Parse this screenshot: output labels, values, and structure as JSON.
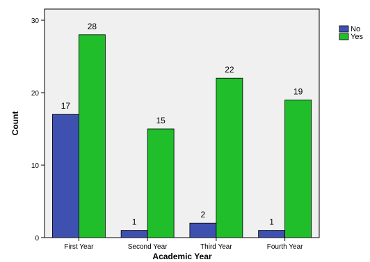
{
  "chart_data": {
    "type": "bar",
    "title": "",
    "xlabel": "Academic Year",
    "ylabel": "Count",
    "categories": [
      "First Year",
      "Second Year",
      "Third Year",
      "Fourth Year"
    ],
    "series": [
      {
        "name": "No",
        "values": [
          17,
          1,
          2,
          1
        ],
        "color": "#3f51b0"
      },
      {
        "name": "Yes",
        "values": [
          28,
          15,
          22,
          19
        ],
        "color": "#1fbe2a"
      }
    ],
    "ylim": [
      0,
      30
    ],
    "yticks": [
      0,
      10,
      20,
      30
    ],
    "grid": false,
    "legend_position": "top-right",
    "plot_background": "#f0f0f0"
  }
}
